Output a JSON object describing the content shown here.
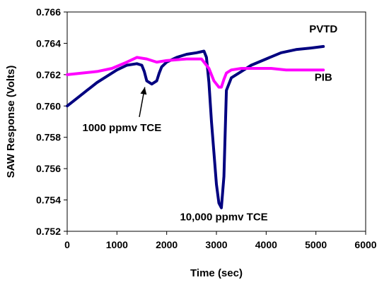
{
  "chart_data": {
    "type": "line",
    "title": "",
    "xlabel": "Time (sec)",
    "ylabel": "SAW Response (Volts)",
    "xlim": [
      0,
      6000
    ],
    "ylim": [
      0.752,
      0.766
    ],
    "xticks": [
      "0",
      "1000",
      "2000",
      "3000",
      "4000",
      "5000",
      "6000"
    ],
    "yticks": [
      "0.752",
      "0.754",
      "0.756",
      "0.758",
      "0.760",
      "0.762",
      "0.764",
      "0.766"
    ],
    "grid": false,
    "series": [
      {
        "name": "PVTD",
        "color": "#000080",
        "x": [
          0,
          200,
          400,
          600,
          800,
          1000,
          1200,
          1400,
          1500,
          1550,
          1600,
          1700,
          1800,
          1850,
          1900,
          2000,
          2200,
          2400,
          2600,
          2750,
          2800,
          2850,
          2900,
          2950,
          3000,
          3050,
          3100,
          3150,
          3200,
          3300,
          3500,
          3700,
          4000,
          4300,
          4600,
          4900,
          5150
        ],
        "y": [
          0.76,
          0.7605,
          0.761,
          0.7615,
          0.7619,
          0.7623,
          0.7626,
          0.7627,
          0.7626,
          0.7622,
          0.7616,
          0.7614,
          0.7616,
          0.7621,
          0.7625,
          0.7628,
          0.7631,
          0.7633,
          0.7634,
          0.7635,
          0.7631,
          0.7615,
          0.759,
          0.757,
          0.755,
          0.7538,
          0.7535,
          0.7555,
          0.761,
          0.7618,
          0.7622,
          0.7626,
          0.763,
          0.7634,
          0.7636,
          0.7637,
          0.7638
        ]
      },
      {
        "name": "PIB",
        "color": "#ff00ff",
        "x": [
          0,
          300,
          600,
          900,
          1200,
          1400,
          1600,
          1800,
          2000,
          2400,
          2700,
          2850,
          2950,
          3050,
          3100,
          3150,
          3200,
          3300,
          3500,
          3800,
          4100,
          4400,
          4700,
          5000,
          5150
        ],
        "y": [
          0.762,
          0.7621,
          0.7622,
          0.7624,
          0.7628,
          0.7631,
          0.763,
          0.7628,
          0.7629,
          0.763,
          0.763,
          0.7624,
          0.7616,
          0.7612,
          0.7612,
          0.7617,
          0.7621,
          0.7623,
          0.7624,
          0.7624,
          0.7624,
          0.7623,
          0.7623,
          0.7623,
          0.7623
        ]
      }
    ],
    "annotations": [
      {
        "text": "1000 ppmv TCE",
        "x": 1100,
        "y": 0.7584
      },
      {
        "text": "10,000 ppmv TCE",
        "x": 3150,
        "y": 0.7527
      },
      {
        "text": "PVTD",
        "x": 5150,
        "y": 0.7647
      },
      {
        "text": "PIB",
        "x": 5150,
        "y": 0.7616
      }
    ],
    "arrow": {
      "from": [
        1450,
        0.7593
      ],
      "to": [
        1560,
        0.7612
      ]
    }
  }
}
